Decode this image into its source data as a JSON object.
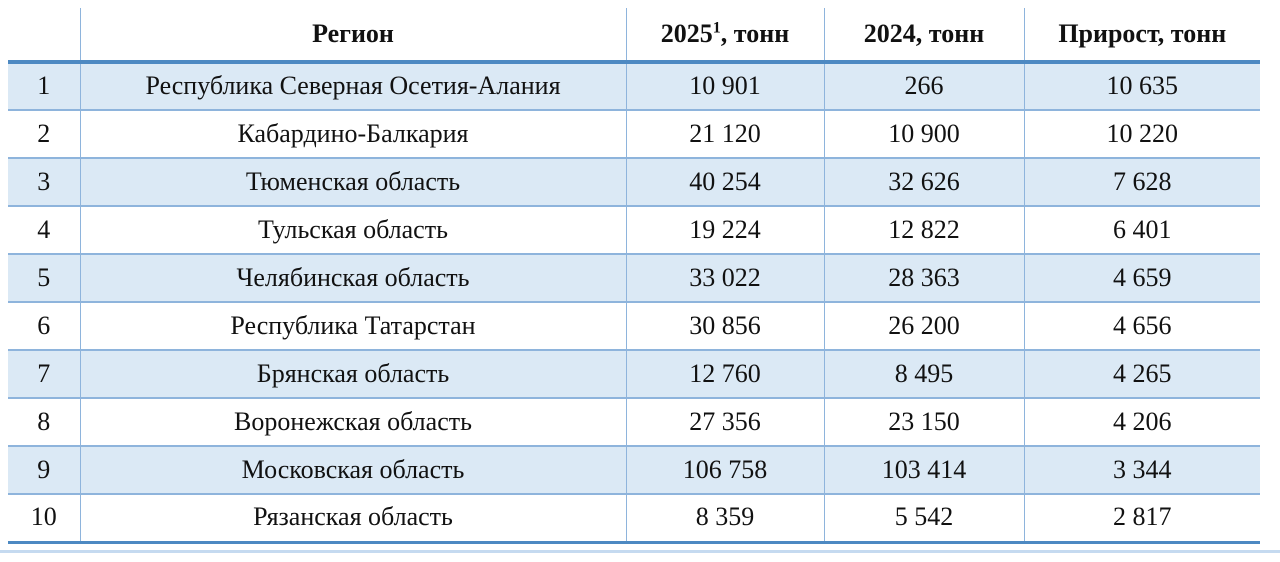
{
  "colors": {
    "band": "#dbe9f5",
    "grid": "#8eb4dc",
    "accent": "#4d89c2",
    "footer_bar": "#c5daf0"
  },
  "table": {
    "header": {
      "rank": "",
      "region": "Регион",
      "y2025": {
        "base": "2025",
        "sup": "1",
        "suffix": ", тонн"
      },
      "y2024": "2024, тонн",
      "delta": "Прирост, тонн"
    },
    "rows": [
      {
        "rank": "1",
        "region": "Республика Северная Осетия-Алания",
        "v2025": "10 901",
        "v2024": "266",
        "delta": "10 635"
      },
      {
        "rank": "2",
        "region": "Кабардино-Балкария",
        "v2025": "21 120",
        "v2024": "10 900",
        "delta": "10 220"
      },
      {
        "rank": "3",
        "region": "Тюменская область",
        "v2025": "40 254",
        "v2024": "32 626",
        "delta": "7 628"
      },
      {
        "rank": "4",
        "region": "Тульская область",
        "v2025": "19 224",
        "v2024": "12 822",
        "delta": "6 401"
      },
      {
        "rank": "5",
        "region": "Челябинская область",
        "v2025": "33 022",
        "v2024": "28 363",
        "delta": "4 659"
      },
      {
        "rank": "6",
        "region": "Республика Татарстан",
        "v2025": "30 856",
        "v2024": "26 200",
        "delta": "4 656"
      },
      {
        "rank": "7",
        "region": "Брянская область",
        "v2025": "12 760",
        "v2024": "8 495",
        "delta": "4 265"
      },
      {
        "rank": "8",
        "region": "Воронежская область",
        "v2025": "27 356",
        "v2024": "23 150",
        "delta": "4 206"
      },
      {
        "rank": "9",
        "region": "Московская область",
        "v2025": "106 758",
        "v2024": "103 414",
        "delta": "3 344"
      },
      {
        "rank": "10",
        "region": "Рязанская область",
        "v2025": "8 359",
        "v2024": "5 542",
        "delta": "2 817"
      }
    ]
  }
}
